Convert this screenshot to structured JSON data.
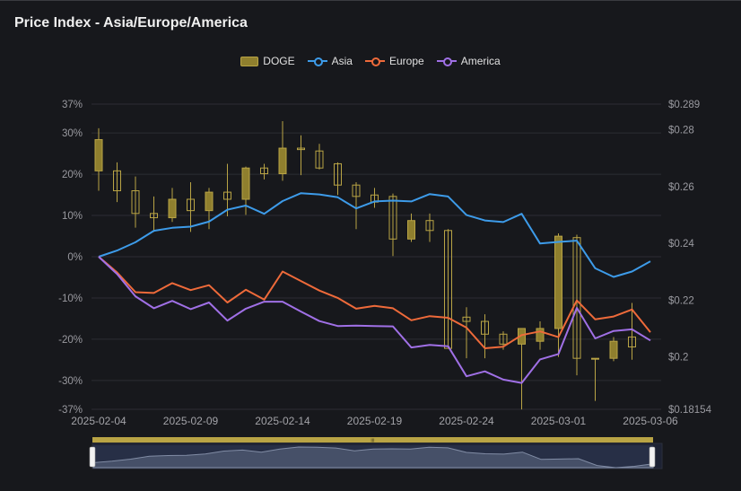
{
  "title": "Price Index - Asia/Europe/America",
  "legend": [
    {
      "name": "DOGE",
      "icon": "candle-box-icon",
      "color": "#b9a445"
    },
    {
      "name": "Asia",
      "icon": "line-circle-icon",
      "color": "#3d9be9"
    },
    {
      "name": "Europe",
      "icon": "line-circle-icon",
      "color": "#ee6a3a"
    },
    {
      "name": "America",
      "icon": "line-circle-icon",
      "color": "#a070e6"
    }
  ],
  "chart_data": {
    "type": "candlestick+line",
    "title": "Price Index - Asia/Europe/America",
    "x_tick_labels": [
      "2025-02-04",
      "2025-02-09",
      "2025-02-14",
      "2025-02-19",
      "2025-02-24",
      "2025-03-01",
      "2025-03-06"
    ],
    "dates": [
      "2025-02-04",
      "2025-02-05",
      "2025-02-06",
      "2025-02-07",
      "2025-02-08",
      "2025-02-09",
      "2025-02-10",
      "2025-02-11",
      "2025-02-12",
      "2025-02-13",
      "2025-02-14",
      "2025-02-15",
      "2025-02-16",
      "2025-02-17",
      "2025-02-18",
      "2025-02-19",
      "2025-02-20",
      "2025-02-21",
      "2025-02-22",
      "2025-02-23",
      "2025-02-24",
      "2025-02-25",
      "2025-02-26",
      "2025-02-27",
      "2025-02-28",
      "2025-03-01",
      "2025-03-02",
      "2025-03-03",
      "2025-03-04",
      "2025-03-05",
      "2025-03-06"
    ],
    "left_axis": {
      "unit": "percent",
      "min": -37,
      "max": 37,
      "tick_labels": [
        "37%",
        "30%",
        "20%",
        "10%",
        "0%",
        "-10%",
        "-20%",
        "-30%",
        "-37%"
      ],
      "tick_values": [
        37,
        30,
        20,
        10,
        0,
        -10,
        -20,
        -30,
        -37
      ]
    },
    "right_axis": {
      "unit": "USD",
      "min": 0.18154,
      "max": 0.289,
      "tick_labels": [
        "$0.289",
        "$0.28",
        "$0.26",
        "$0.24",
        "$0.22",
        "$0.2",
        "$0.18154"
      ],
      "tick_values": [
        0.289,
        0.28,
        0.26,
        0.24,
        0.22,
        0.2,
        0.18154
      ]
    },
    "series": [
      {
        "name": "Asia",
        "color": "#3d9be9",
        "values": [
          0,
          1.5,
          3.5,
          6.3,
          7.0,
          7.3,
          8.5,
          11.4,
          12.4,
          10.4,
          13.5,
          15.4,
          15.1,
          14.4,
          11.7,
          13.4,
          13.6,
          13.4,
          15.2,
          14.6,
          10.1,
          8.8,
          8.4,
          10.4,
          3.2,
          3.6,
          3.9,
          -2.8,
          -4.9,
          -3.6,
          -1.1
        ]
      },
      {
        "name": "Europe",
        "color": "#ee6a3a",
        "values": [
          0,
          -3.8,
          -8.6,
          -8.8,
          -6.4,
          -8.1,
          -6.9,
          -11.1,
          -8.0,
          -10.4,
          -3.6,
          -5.9,
          -8.2,
          -10.0,
          -12.6,
          -11.9,
          -12.5,
          -15.4,
          -14.4,
          -14.8,
          -17.2,
          -22.2,
          -21.8,
          -19.0,
          -18.1,
          -19.5,
          -10.6,
          -15.2,
          -14.5,
          -12.8,
          -18.3
        ]
      },
      {
        "name": "America",
        "color": "#a070e6",
        "values": [
          0,
          -4.2,
          -9.6,
          -12.5,
          -10.7,
          -12.7,
          -11.1,
          -15.5,
          -12.6,
          -10.9,
          -10.9,
          -13.3,
          -15.6,
          -16.8,
          -16.7,
          -16.8,
          -16.9,
          -22.0,
          -21.4,
          -21.7,
          -29.0,
          -27.8,
          -29.8,
          -30.6,
          -24.9,
          -23.6,
          -12.4,
          -19.8,
          -18.0,
          -17.6,
          -20.3
        ]
      }
    ],
    "candles": {
      "name": "DOGE",
      "fields": [
        "date",
        "open",
        "close",
        "low",
        "high"
      ],
      "values": [
        [
          "2025-02-04",
          0.2655,
          0.2765,
          0.2585,
          0.2805
        ],
        [
          "2025-02-05",
          0.2655,
          0.2585,
          0.2545,
          0.2685
        ],
        [
          "2025-02-06",
          0.2585,
          0.2505,
          0.2455,
          0.2635
        ],
        [
          "2025-02-07",
          0.2505,
          0.249,
          0.244,
          0.2565
        ],
        [
          "2025-02-08",
          0.249,
          0.2555,
          0.2475,
          0.2595
        ],
        [
          "2025-02-09",
          0.2555,
          0.2515,
          0.244,
          0.2615
        ],
        [
          "2025-02-10",
          0.2515,
          0.258,
          0.245,
          0.2595
        ],
        [
          "2025-02-11",
          0.258,
          0.2555,
          0.2495,
          0.268
        ],
        [
          "2025-02-12",
          0.2555,
          0.2665,
          0.25,
          0.267
        ],
        [
          "2025-02-13",
          0.2665,
          0.2645,
          0.2625,
          0.268
        ],
        [
          "2025-02-14",
          0.2645,
          0.2735,
          0.262,
          0.283
        ],
        [
          "2025-02-15",
          0.2735,
          0.273,
          0.264,
          0.278
        ],
        [
          "2025-02-16",
          0.2725,
          0.2665,
          0.266,
          0.275
        ],
        [
          "2025-02-17",
          0.268,
          0.2605,
          0.257,
          0.2685
        ],
        [
          "2025-02-18",
          0.2605,
          0.2565,
          0.245,
          0.2615
        ],
        [
          "2025-02-19",
          0.257,
          0.2545,
          0.2525,
          0.2595
        ],
        [
          "2025-02-20",
          0.2565,
          0.2415,
          0.2355,
          0.2575
        ],
        [
          "2025-02-21",
          0.2415,
          0.248,
          0.2405,
          0.2505
        ],
        [
          "2025-02-22",
          0.248,
          0.2445,
          0.2405,
          0.2505
        ],
        [
          "2025-02-23",
          0.2445,
          0.203,
          0.203,
          0.245
        ],
        [
          "2025-02-24",
          0.214,
          0.2125,
          0.1995,
          0.2175
        ],
        [
          "2025-02-25",
          0.2125,
          0.208,
          0.1995,
          0.215
        ],
        [
          "2025-02-26",
          0.208,
          0.2045,
          0.2025,
          0.209
        ],
        [
          "2025-02-27",
          0.2045,
          0.21,
          0.1815,
          0.21
        ],
        [
          "2025-02-28",
          0.2055,
          0.21,
          0.2025,
          0.2125
        ],
        [
          "2025-03-01",
          0.21,
          0.2425,
          0.2,
          0.2435
        ],
        [
          "2025-03-02",
          0.242,
          0.1995,
          0.1935,
          0.243
        ],
        [
          "2025-03-03",
          0.1995,
          0.1995,
          0.1845,
          0.1995
        ],
        [
          "2025-03-04",
          0.1995,
          0.2055,
          0.1985,
          0.207
        ],
        [
          "2025-03-05",
          0.207,
          0.2035,
          0.199,
          0.219
        ]
      ]
    },
    "legend_position": "top-center",
    "grid": true
  },
  "zoom_slider": {
    "handle_label": "III"
  }
}
